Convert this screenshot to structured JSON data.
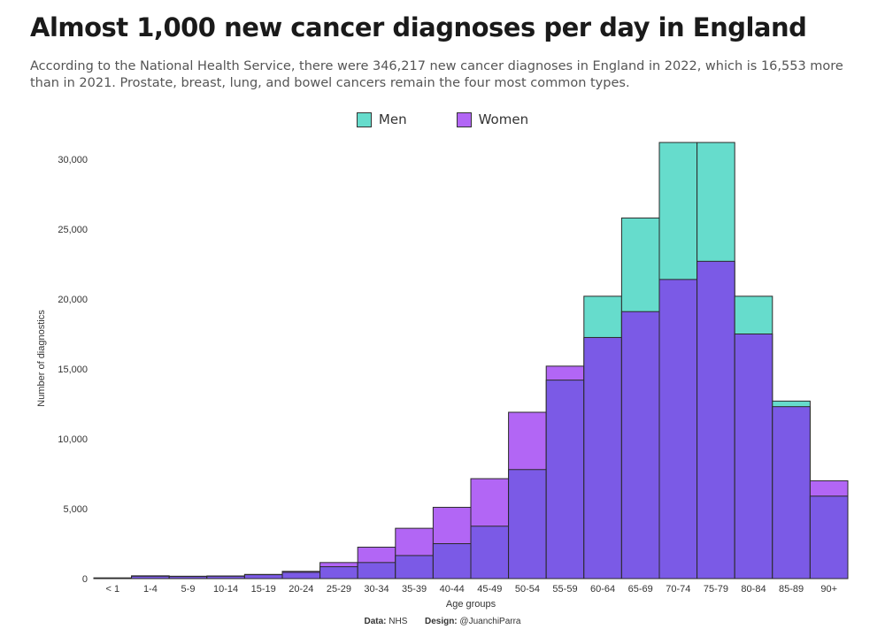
{
  "title": "Almost 1,000 new cancer diagnoses per day in England",
  "subtitle": "According to the National Health Service, there were 346,217 new cancer diagnoses in England in 2022, which is 16,553 more than in 2021. Prostate, breast, lung, and bowel cancers remain the four most common types.",
  "colors": {
    "men": "#66dccc",
    "women": "#b266f5",
    "overlap": "#7b5ae6",
    "stroke": "#2a2a2a"
  },
  "caption": {
    "data_label": "Data:",
    "data_value": "NHS",
    "design_label": "Design:",
    "design_value": "@JuanchiParra"
  },
  "chart_data": {
    "type": "bar",
    "xlabel": "Age groups",
    "ylabel": "Number of diagnostics",
    "ylim": [
      0,
      31500
    ],
    "yticks": [
      0,
      5000,
      10000,
      15000,
      20000,
      25000,
      30000
    ],
    "ytick_labels": [
      "0",
      "5,000",
      "10,000",
      "15,000",
      "20,000",
      "25,000",
      "30,000"
    ],
    "legend_position": "top-center",
    "categories": [
      "< 1",
      "1-4",
      "5-9",
      "10-14",
      "15-19",
      "20-24",
      "25-29",
      "30-34",
      "35-39",
      "40-44",
      "45-49",
      "50-54",
      "55-59",
      "60-64",
      "65-69",
      "70-74",
      "75-79",
      "80-84",
      "85-89",
      "90+"
    ],
    "series": [
      {
        "name": "Men",
        "values": [
          50,
          200,
          170,
          190,
          280,
          450,
          850,
          1150,
          1650,
          2500,
          3750,
          7800,
          14200,
          20200,
          25800,
          31200,
          31200,
          20200,
          12700,
          5900
        ]
      },
      {
        "name": "Women",
        "values": [
          40,
          170,
          150,
          170,
          300,
          520,
          1150,
          2250,
          3600,
          5100,
          7150,
          11900,
          15200,
          17250,
          19100,
          21400,
          22700,
          17500,
          12300,
          7000
        ]
      }
    ]
  }
}
